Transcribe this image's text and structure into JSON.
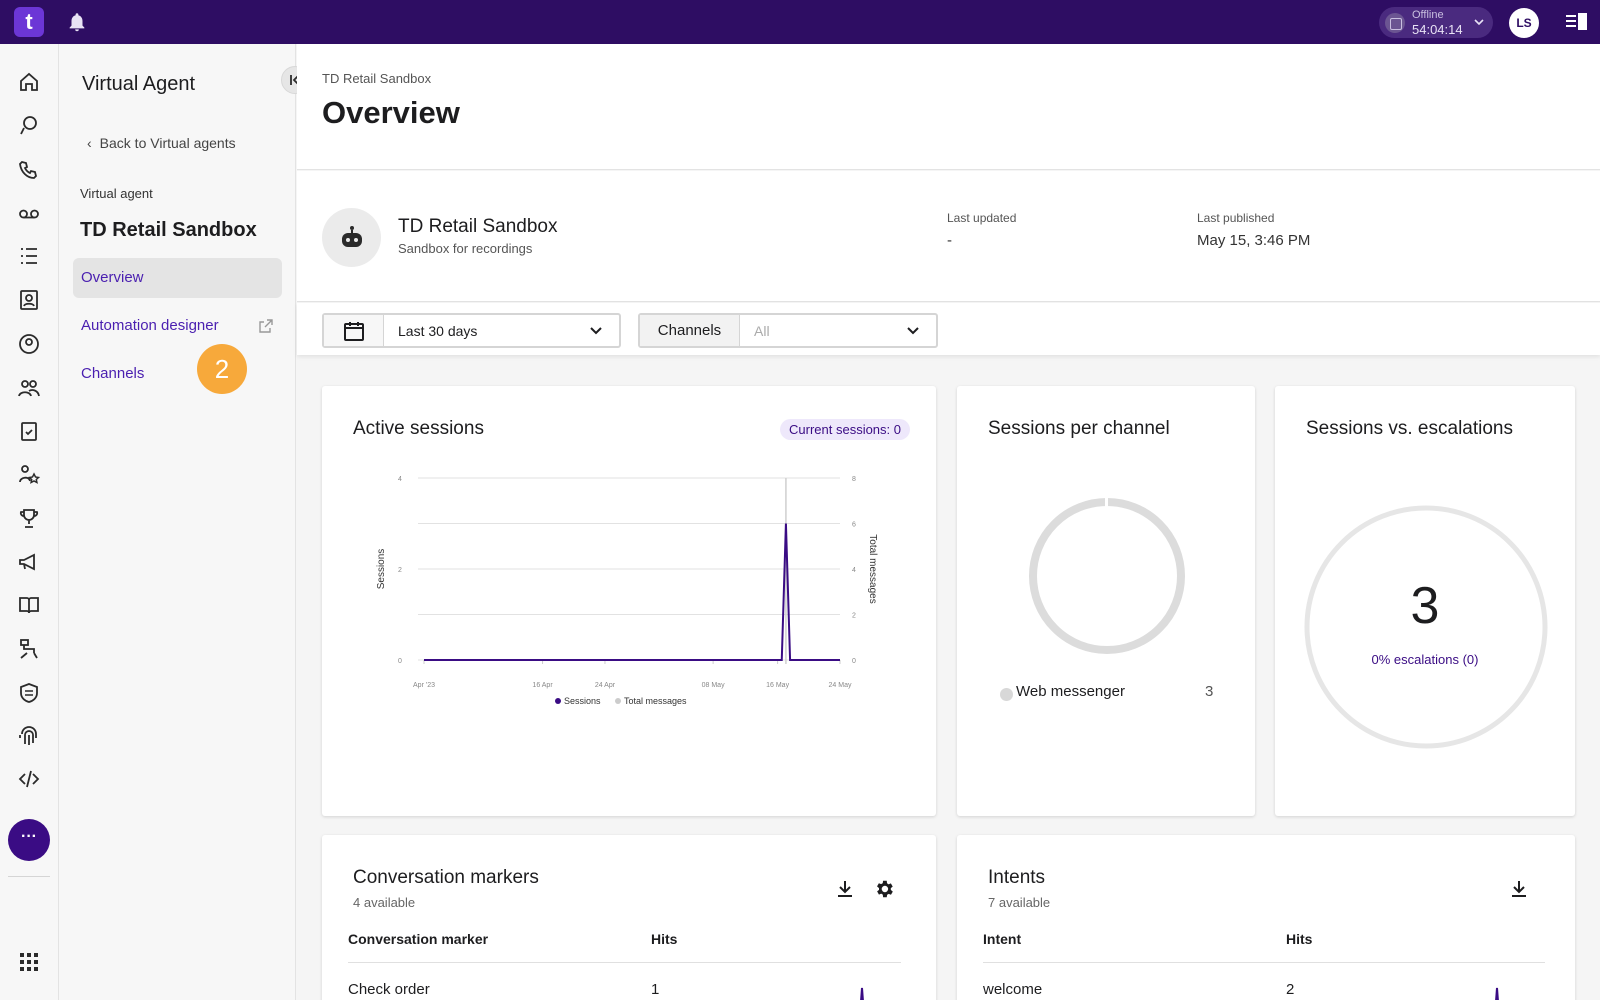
{
  "topbar": {
    "logo": "t",
    "status_label": "Offline",
    "status_time": "54:04:14",
    "avatar_initials": "LS"
  },
  "rail": {
    "icons": [
      "home-icon",
      "conversation-icon",
      "phone-icon",
      "voicemail-icon",
      "list-icon",
      "contacts-icon",
      "agent-icon",
      "team-icon",
      "clipboard-icon",
      "people-star-icon",
      "trophy-icon",
      "megaphone-icon",
      "book-icon",
      "flow-icon",
      "shield-icon",
      "fingerprint-icon",
      "code-icon"
    ],
    "more_label": "···"
  },
  "sidebar": {
    "title": "Virtual Agent",
    "back_label": "Back to Virtual agents",
    "section_label": "Virtual agent",
    "agent_name": "TD Retail Sandbox",
    "items": [
      {
        "label": "Overview",
        "active": true
      },
      {
        "label": "Automation designer",
        "external": true
      },
      {
        "label": "Channels"
      }
    ],
    "step_badge": "2"
  },
  "header": {
    "breadcrumb": "TD Retail Sandbox",
    "title": "Overview"
  },
  "agent_info": {
    "name": "TD Retail Sandbox",
    "description": "Sandbox for recordings",
    "last_updated_label": "Last updated",
    "last_updated_value": "-",
    "last_published_label": "Last published",
    "last_published_value": "May 15, 3:46 PM"
  },
  "filters": {
    "date_range": "Last 30 days",
    "channels_label": "Channels",
    "channels_value": "All"
  },
  "cards": {
    "active_sessions": {
      "title": "Active sessions",
      "badge": "Current sessions: 0"
    },
    "sessions_per_channel": {
      "title": "Sessions per channel",
      "channel": "Web messenger",
      "value": "3"
    },
    "sessions_vs_escalations": {
      "title": "Sessions vs. escalations",
      "total": "3",
      "escalations": "0% escalations (0)"
    },
    "conversation_markers": {
      "title": "Conversation markers",
      "subtitle": "4 available",
      "col1": "Conversation marker",
      "col2": "Hits",
      "rows": [
        {
          "name": "Check order",
          "hits": "1"
        }
      ]
    },
    "intents": {
      "title": "Intents",
      "subtitle": "7 available",
      "col1": "Intent",
      "col2": "Hits",
      "rows": [
        {
          "name": "welcome",
          "hits": "2"
        }
      ]
    }
  },
  "colors": {
    "brand_dark": "#2e0d63",
    "accent": "#3a0c84",
    "link": "#4a1fb0",
    "badge_orange": "#f7a93b",
    "sessions_line": "#3a0c84",
    "messages_line": "#cccccc"
  },
  "chart_data": {
    "type": "line",
    "x": [
      "Apr '23",
      "16 Apr",
      "24 Apr",
      "08 May",
      "16 May",
      "24 May"
    ],
    "xlabel": "",
    "ylabel": "Sessions",
    "y2label": "Total messages",
    "ylim": [
      0,
      4
    ],
    "y2lim": [
      0,
      8
    ],
    "yticks": [
      0,
      2,
      4
    ],
    "y2ticks": [
      0,
      2,
      4,
      6,
      8
    ],
    "series": [
      {
        "name": "Sessions",
        "axis": "left",
        "points": [
          [
            0,
            0
          ],
          [
            86,
            0
          ],
          [
            87,
            3
          ],
          [
            88,
            0
          ],
          [
            100,
            0
          ]
        ]
      },
      {
        "name": "Total messages",
        "axis": "right",
        "points": []
      }
    ],
    "legend": [
      "Sessions",
      "Total messages"
    ],
    "legend_position": "bottom",
    "grid": true
  }
}
